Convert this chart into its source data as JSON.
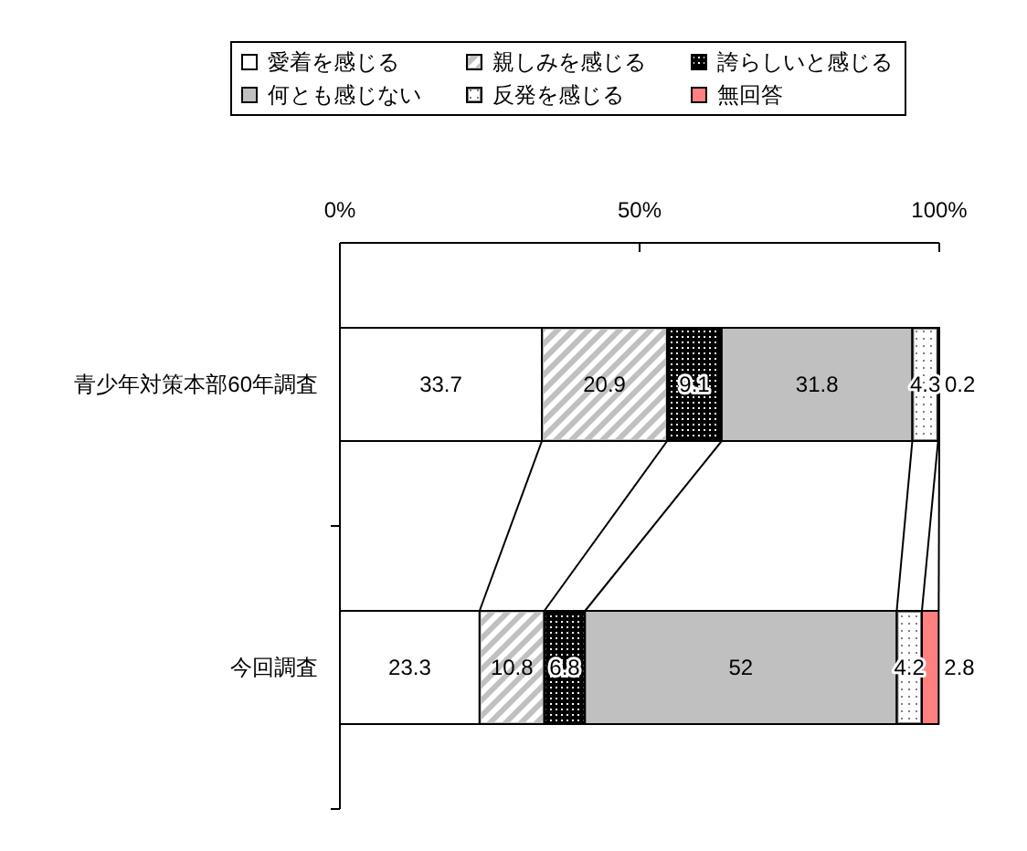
{
  "chart_data": {
    "type": "bar",
    "orientation": "horizontal",
    "stacked": true,
    "categories": [
      "青少年対策本部60年調査",
      "今回調査"
    ],
    "series": [
      {
        "name": "愛着を感じる",
        "color": "#ffffff",
        "values": [
          33.7,
          23.3
        ]
      },
      {
        "name": "親しみを感じる",
        "color": "#c0c0c0",
        "values": [
          20.9,
          10.8
        ]
      },
      {
        "name": "誇らしいと感じる",
        "color": "#000000",
        "values": [
          9.1,
          6.8
        ]
      },
      {
        "name": "何とも感じない",
        "color": "#c0c0c0",
        "values": [
          31.8,
          52
        ]
      },
      {
        "name": "反発を感じる",
        "color": "#808080",
        "values": [
          4.3,
          4.2
        ]
      },
      {
        "name": "無回答",
        "color": "#ff8080",
        "values": [
          0.2,
          2.8
        ]
      }
    ],
    "xlim": [
      0,
      100
    ],
    "xticks": [
      {
        "value": 0,
        "label": "0%"
      },
      {
        "value": 50,
        "label": "50%"
      },
      {
        "value": 100,
        "label": "100%"
      }
    ],
    "legend": "top",
    "data_labels": true
  }
}
